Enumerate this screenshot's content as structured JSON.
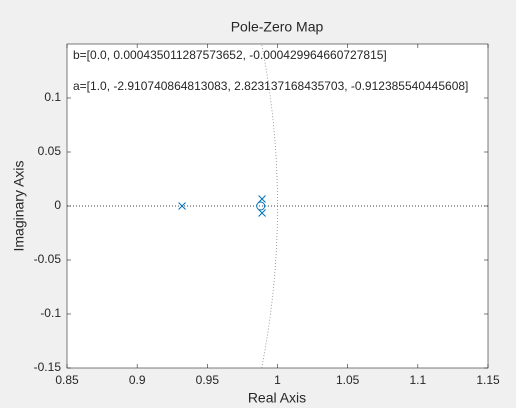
{
  "chart_data": {
    "type": "scatter",
    "title": "Pole-Zero Map",
    "xlabel": "Real Axis",
    "ylabel": "Imaginary Axis",
    "annotations": [
      "b=[0.0, 0.000435011287573652, -0.000429964660727815]",
      "a=[1.0, -2.910740864813083, 2.823137168435703, -0.912385540445608]"
    ],
    "xlim": [
      0.85,
      1.15
    ],
    "ylim": [
      -0.15,
      0.15
    ],
    "xticks": [
      0.85,
      0.9,
      0.95,
      1,
      1.05,
      1.1,
      1.15
    ],
    "yticks": [
      -0.15,
      -0.1,
      -0.05,
      0,
      0.05,
      0.1
    ],
    "series": [
      {
        "marker": "x",
        "color": "#0072bd",
        "x": [
          0.932,
          0.989,
          0.989
        ],
        "values": [
          0,
          0.0065,
          -0.0065
        ]
      },
      {
        "marker": "o",
        "color": "#0072bd",
        "x": [
          0.988
        ],
        "values": [
          0
        ]
      }
    ]
  }
}
